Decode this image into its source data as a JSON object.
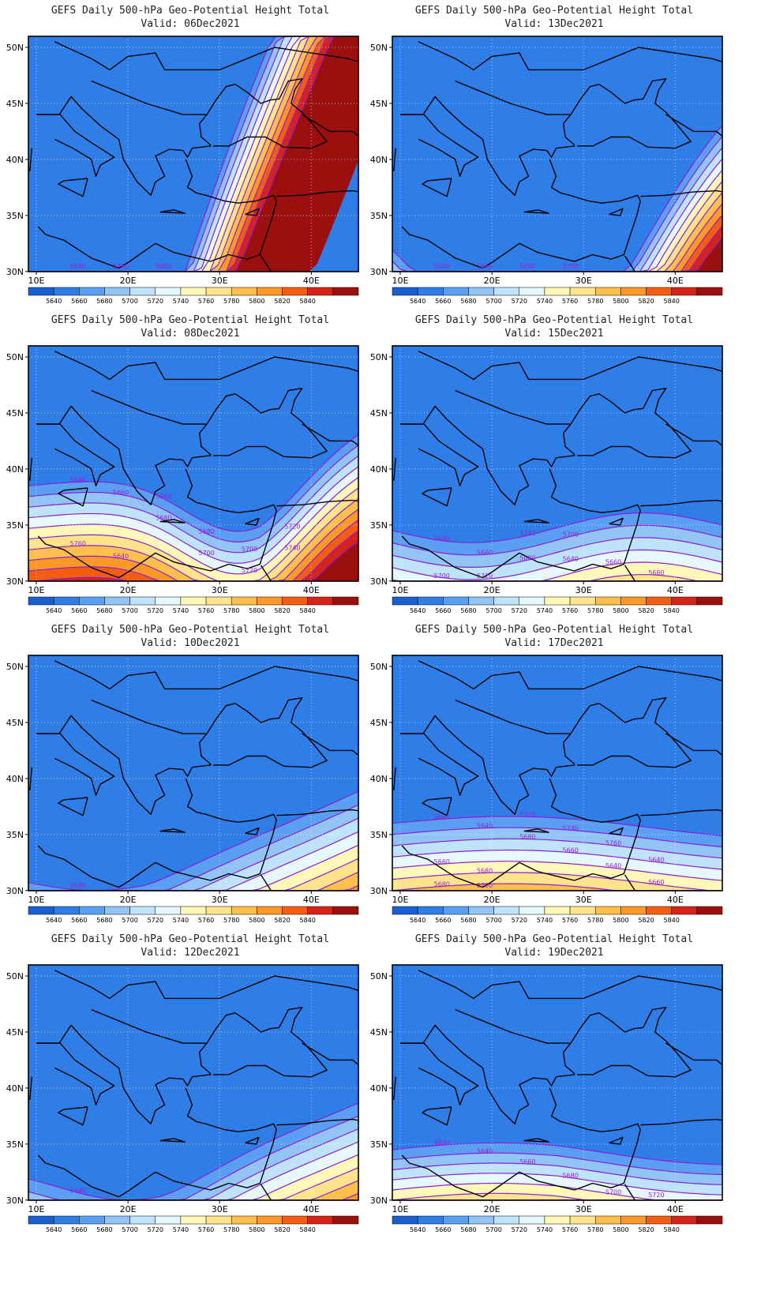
{
  "panel_title": "GEFS Daily 500-hPa Geo-Potential Height Total",
  "valid_prefix": "Valid:",
  "lat_ticks": [
    "50N",
    "45N",
    "40N",
    "35N",
    "30N"
  ],
  "lon_ticks": [
    "10E",
    "20E",
    "30E",
    "40E"
  ],
  "colorbar": {
    "labels": [
      "5640",
      "5660",
      "5680",
      "5700",
      "5720",
      "5740",
      "5760",
      "5780",
      "5800",
      "5820",
      "5840"
    ],
    "colors": [
      "#1a5fcf",
      "#2f7ee8",
      "#5b9ff2",
      "#92c5f5",
      "#bfe3fb",
      "#e6f8fe",
      "#fff8b8",
      "#ffe48c",
      "#fdc04c",
      "#fb9928",
      "#f45d10",
      "#d62318",
      "#9c0f0f"
    ]
  },
  "panels": [
    {
      "valid": "06Dec2021",
      "contour_labels": [
        "5640",
        "5780",
        "5800"
      ]
    },
    {
      "valid": "13Dec2021",
      "contour_labels": [
        "5640",
        "5660",
        "5680",
        "5700"
      ]
    },
    {
      "valid": "08Dec2021",
      "contour_labels": [
        "5640",
        "5660",
        "5680",
        "5700",
        "5720",
        "5740",
        "5760",
        "5640",
        "5660",
        "5680",
        "5700",
        "5720"
      ]
    },
    {
      "valid": "15Dec2021",
      "contour_labels": [
        "5640",
        "5660",
        "5680",
        "5640",
        "5660",
        "5680",
        "5700",
        "5720",
        "5740",
        "5700"
      ]
    },
    {
      "valid": "10Dec2021",
      "contour_labels": [
        "5640"
      ]
    },
    {
      "valid": "17Dec2021",
      "contour_labels": [
        "5660",
        "5640",
        "5680",
        "5660",
        "5640",
        "5660",
        "5680",
        "5700",
        "5720",
        "5740",
        "5760",
        "5640",
        "5660",
        "5680"
      ]
    },
    {
      "valid": "12Dec2021",
      "contour_labels": [
        "5640"
      ]
    },
    {
      "valid": "19Dec2021",
      "contour_labels": [
        "5640",
        "5640",
        "5660",
        "5680",
        "5700",
        "5720"
      ]
    }
  ]
}
